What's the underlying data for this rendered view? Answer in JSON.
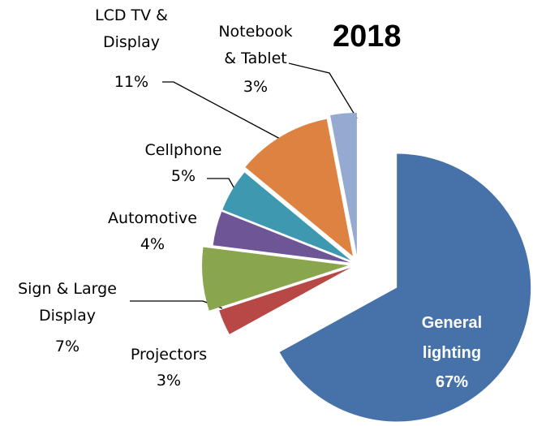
{
  "chart_data": {
    "type": "pie",
    "title": "2018",
    "categories": [
      "General lighting",
      "Projectors",
      "Sign & Large Display",
      "Automotive",
      "Cellphone",
      "LCD TV & Display",
      "Notebook & Tablet"
    ],
    "values": [
      67,
      3,
      7,
      4,
      5,
      11,
      3
    ],
    "value_labels": [
      "67%",
      "3%",
      "7%",
      "4%",
      "5%",
      "11%",
      "3%"
    ],
    "colors": [
      "#4672a9",
      "#b84845",
      "#89a54e",
      "#6e5595",
      "#3d98b0",
      "#dd8240",
      "#95aad1"
    ]
  }
}
